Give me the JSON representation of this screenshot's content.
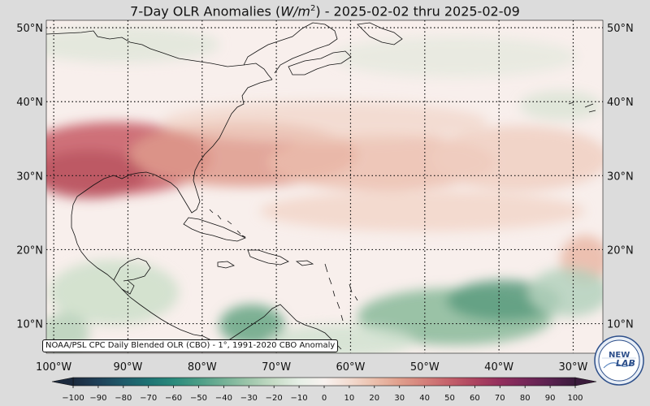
{
  "title": "7-Day OLR Anomalies (W/m²) - 2025-02-02 thru 2025-02-09",
  "title_parts": {
    "prefix": "7-Day OLR Anomalies (",
    "unit_base": "W/m",
    "unit_exp": "2",
    "suffix": ") - 2025-02-02 thru 2025-02-09"
  },
  "map": {
    "lon_range": [
      -101,
      -26
    ],
    "lat_range": [
      6,
      51
    ],
    "lat_labels": [
      "50°N",
      "40°N",
      "30°N",
      "20°N",
      "10°N"
    ],
    "lat_values": [
      50,
      40,
      30,
      20,
      10
    ],
    "lon_labels": [
      "100°W",
      "90°W",
      "80°W",
      "70°W",
      "60°W",
      "50°W",
      "40°W",
      "30°W"
    ],
    "lon_values": [
      -100,
      -90,
      -80,
      -70,
      -60,
      -50,
      -40,
      -30
    ],
    "gridlines": "dotted"
  },
  "attribution": "NOAA/PSL CPC Daily Blended OLR (CBO) - 1°, 1991-2020 CBO Anomaly",
  "colorbar": {
    "ticks": [
      "−100",
      "−90",
      "−80",
      "−70",
      "−60",
      "−50",
      "−40",
      "−30",
      "−20",
      "−10",
      "0",
      "10",
      "20",
      "30",
      "40",
      "50",
      "60",
      "70",
      "80",
      "90",
      "100"
    ],
    "range": [
      -100,
      100
    ],
    "colors": [
      "#1c2a3e",
      "#1f4058",
      "#1f5a6a",
      "#1e7374",
      "#2a8a7c",
      "#4b9d86",
      "#74b196",
      "#9ec6ab",
      "#c6dcc6",
      "#e6efe6",
      "#f8f2ef",
      "#f3dcd1",
      "#ebbfac",
      "#e09f8c",
      "#d4807a",
      "#c4606a",
      "#ad4460",
      "#932f5d",
      "#762759",
      "#5a2250",
      "#3a1b3c"
    ]
  },
  "logo": {
    "text_top": "NEW",
    "text_bottom": "LAB"
  }
}
